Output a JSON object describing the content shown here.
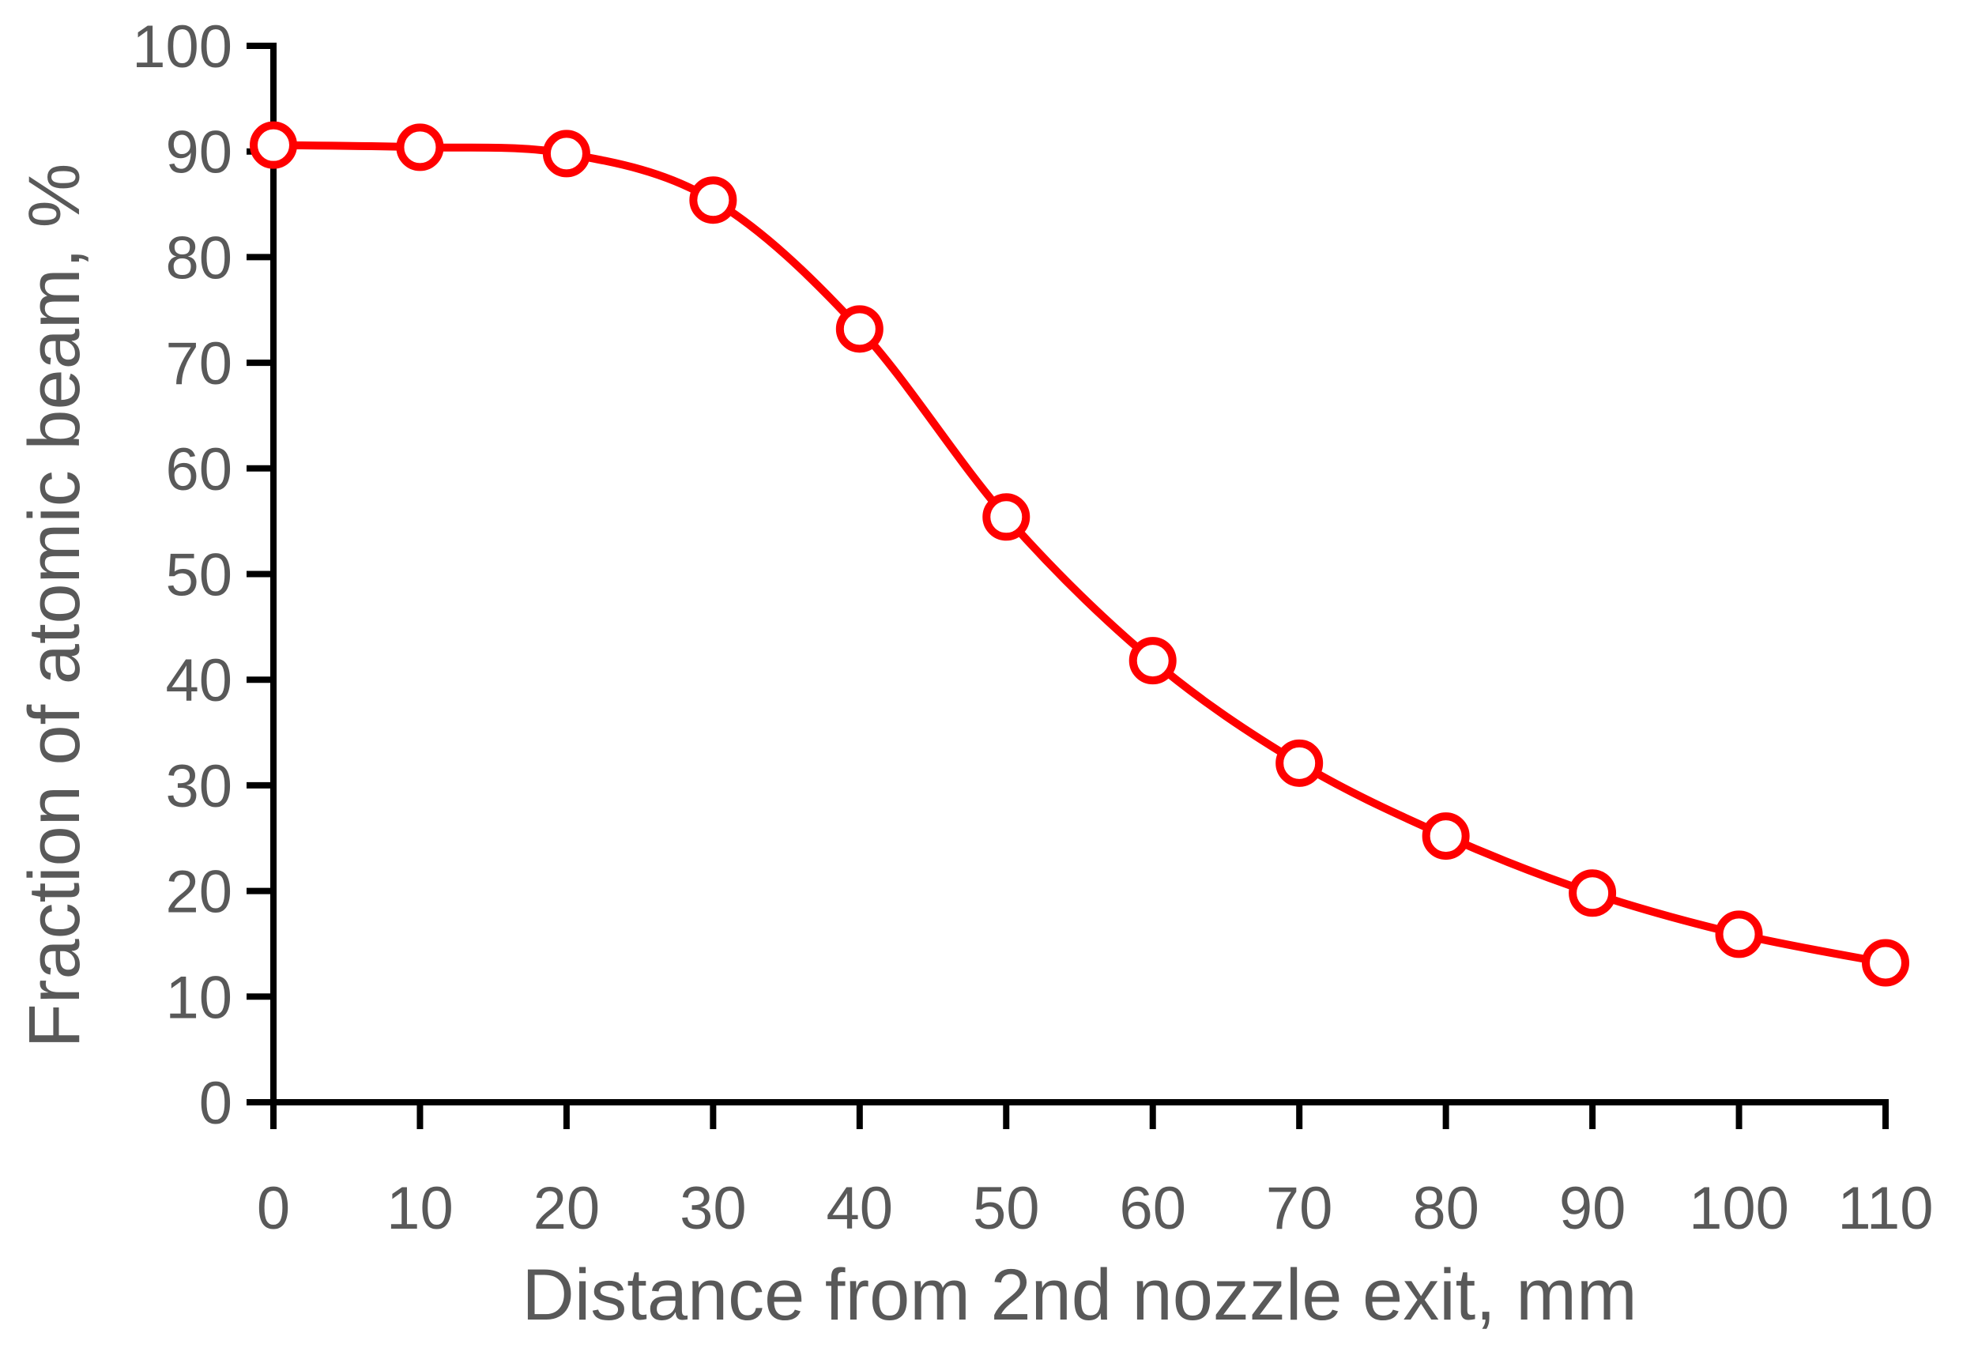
{
  "chart_data": {
    "type": "line",
    "title": "",
    "xlabel": "Distance from 2nd nozzle exit, mm",
    "ylabel": "Fraction of atomic beam, %",
    "xlim": [
      0,
      110
    ],
    "ylim": [
      0,
      100
    ],
    "x_ticks": [
      0,
      10,
      20,
      30,
      40,
      50,
      60,
      70,
      80,
      90,
      100,
      110
    ],
    "y_ticks": [
      0,
      10,
      20,
      30,
      40,
      50,
      60,
      70,
      80,
      90,
      100
    ],
    "grid": false,
    "legend": "none",
    "smooth": true,
    "marker": "open-circle",
    "series_color": "#ff0000",
    "series": [
      {
        "x": [
          0,
          10,
          20,
          30,
          40,
          50,
          60,
          70,
          80,
          90,
          100,
          110
        ],
        "values": [
          90.6,
          90.4,
          89.8,
          85.4,
          73.2,
          55.4,
          41.8,
          32.1,
          25.2,
          19.8,
          15.9,
          13.2
        ]
      }
    ]
  }
}
